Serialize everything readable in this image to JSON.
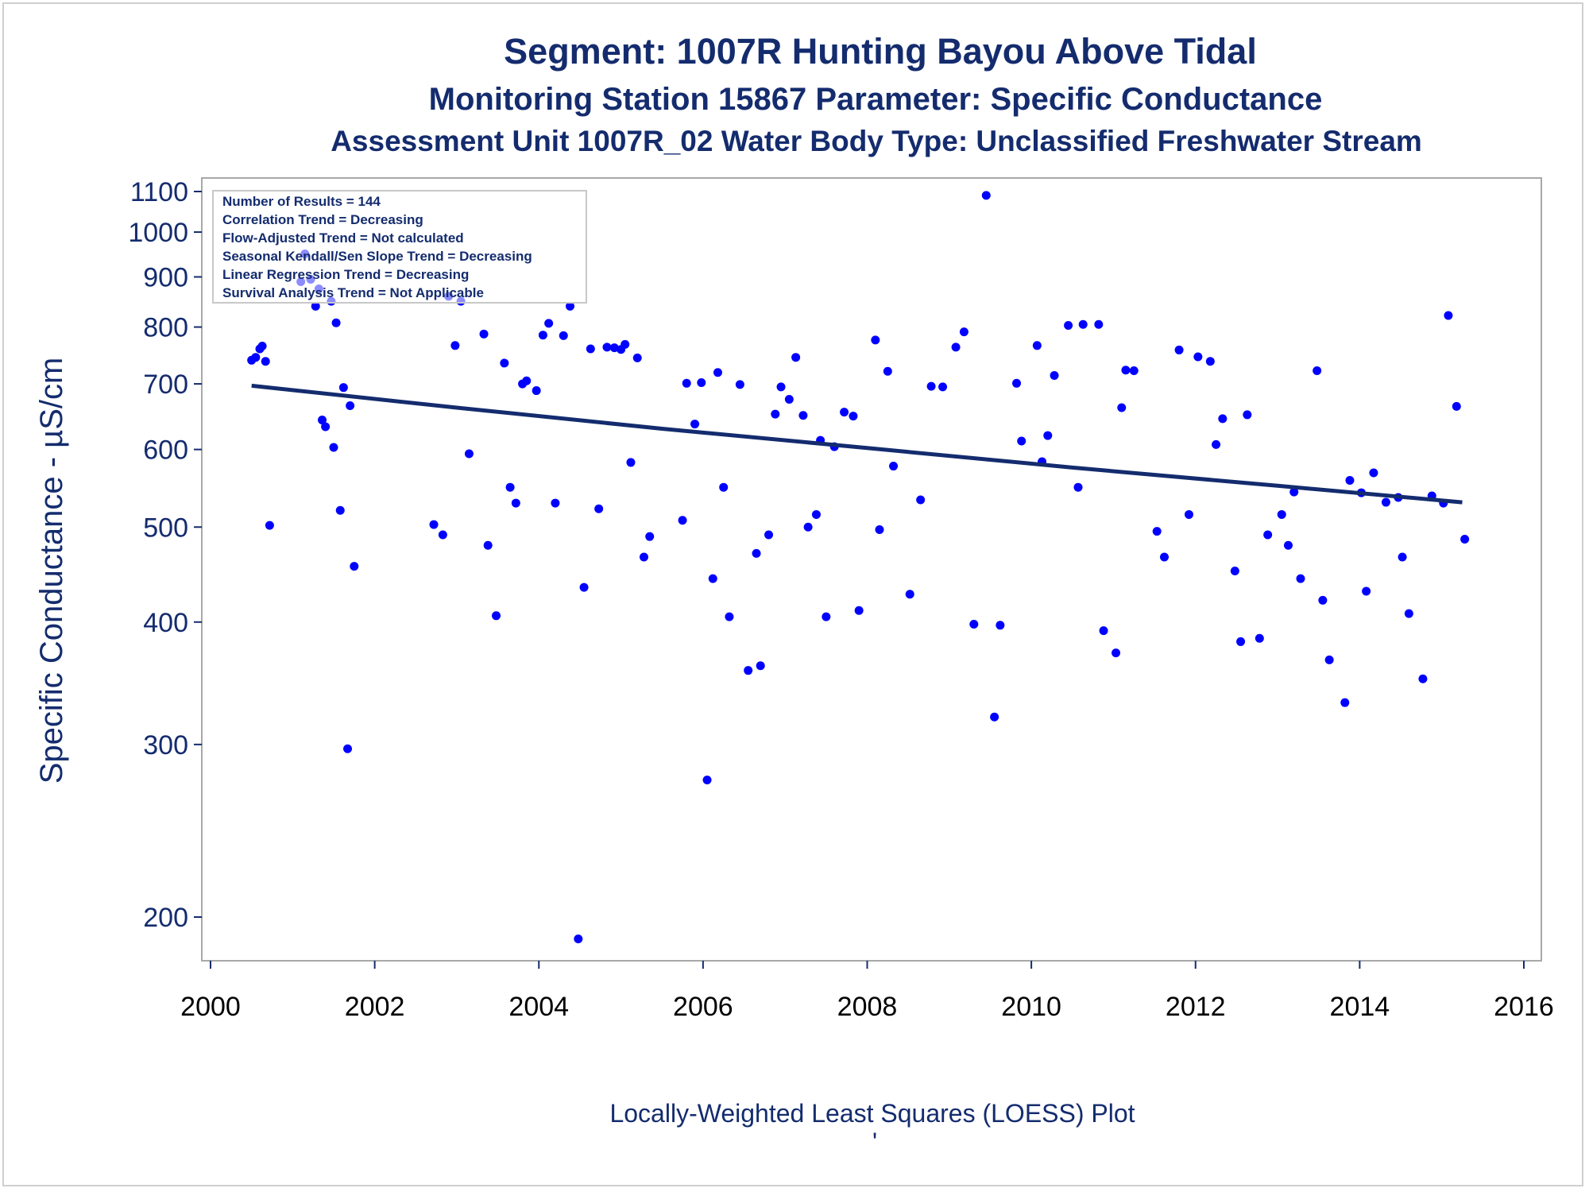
{
  "chart_data": {
    "type": "scatter",
    "title": "Segment: 1007R  Hunting Bayou Above Tidal",
    "subtitle": "Monitoring Station 15867 Parameter: Specific Conductance",
    "subtitle2": "Assessment Unit 1007R_02   Water Body Type: Unclassified Freshwater Stream",
    "ylabel": "Specific Conductance -  µS/cm",
    "footnote": "Locally-Weighted Least Squares (LOESS) Plot",
    "footnote_mark": "'",
    "xlim": [
      2000,
      2016
    ],
    "ylim": [
      180,
      1130
    ],
    "yscale": "log",
    "xticks": [
      2000,
      2002,
      2004,
      2006,
      2008,
      2010,
      2012,
      2014,
      2016
    ],
    "yticks": [
      200,
      300,
      400,
      500,
      600,
      700,
      800,
      900,
      1000,
      1100
    ],
    "grid": false,
    "legend_position": "top-left",
    "stats": [
      "Number of Results = 144",
      "Correlation Trend = Decreasing",
      "Flow-Adjusted Trend = Not calculated",
      "Seasonal Kendall/Sen Slope Trend = Decreasing",
      "Linear Regression Trend = Decreasing",
      "Survival Analysis Trend = Not Applicable"
    ],
    "point_color": "#0000ff",
    "trend_color": "#142c6e",
    "series": [
      {
        "points": [
          [
            2000.5,
            740
          ],
          [
            2000.55,
            745
          ],
          [
            2000.6,
            760
          ],
          [
            2000.63,
            765
          ],
          [
            2000.67,
            738
          ],
          [
            2000.72,
            502
          ],
          [
            2001.1,
            890
          ],
          [
            2001.15,
            950
          ],
          [
            2001.22,
            895
          ],
          [
            2001.28,
            840
          ],
          [
            2001.32,
            875
          ],
          [
            2001.36,
            643
          ],
          [
            2001.4,
            633
          ],
          [
            2001.47,
            850
          ],
          [
            2001.5,
            603
          ],
          [
            2001.53,
            808
          ],
          [
            2001.58,
            520
          ],
          [
            2001.62,
            694
          ],
          [
            2001.67,
            297
          ],
          [
            2001.7,
            665
          ],
          [
            2001.75,
            456
          ],
          [
            2002.72,
            503
          ],
          [
            2002.83,
            491
          ],
          [
            2002.9,
            860
          ],
          [
            2002.98,
            766
          ],
          [
            2003.05,
            850
          ],
          [
            2003.15,
            594
          ],
          [
            2003.33,
            787
          ],
          [
            2003.38,
            479
          ],
          [
            2003.48,
            406
          ],
          [
            2003.58,
            735
          ],
          [
            2003.65,
            549
          ],
          [
            2003.72,
            529
          ],
          [
            2003.8,
            700
          ],
          [
            2003.85,
            705
          ],
          [
            2003.97,
            689
          ],
          [
            2004.05,
            785
          ],
          [
            2004.12,
            807
          ],
          [
            2004.2,
            529
          ],
          [
            2004.3,
            784
          ],
          [
            2004.38,
            840
          ],
          [
            2004.48,
            190
          ],
          [
            2004.55,
            434
          ],
          [
            2004.63,
            760
          ],
          [
            2004.73,
            522
          ],
          [
            2004.83,
            763
          ],
          [
            2004.92,
            762
          ],
          [
            2005.0,
            759
          ],
          [
            2005.05,
            768
          ],
          [
            2005.12,
            582
          ],
          [
            2005.2,
            744
          ],
          [
            2005.28,
            466
          ],
          [
            2005.35,
            489
          ],
          [
            2005.75,
            508
          ],
          [
            2005.8,
            701
          ],
          [
            2005.9,
            637
          ],
          [
            2005.98,
            702
          ],
          [
            2006.05,
            276
          ],
          [
            2006.12,
            443
          ],
          [
            2006.18,
            719
          ],
          [
            2006.25,
            549
          ],
          [
            2006.32,
            405
          ],
          [
            2006.45,
            699
          ],
          [
            2006.55,
            357
          ],
          [
            2006.65,
            470
          ],
          [
            2006.7,
            361
          ],
          [
            2006.8,
            491
          ],
          [
            2006.88,
            652
          ],
          [
            2006.95,
            695
          ],
          [
            2007.05,
            675
          ],
          [
            2007.13,
            745
          ],
          [
            2007.22,
            650
          ],
          [
            2007.28,
            500
          ],
          [
            2007.38,
            515
          ],
          [
            2007.43,
            613
          ],
          [
            2007.5,
            405
          ],
          [
            2007.6,
            604
          ],
          [
            2007.72,
            655
          ],
          [
            2007.83,
            649
          ],
          [
            2007.9,
            411
          ],
          [
            2008.1,
            776
          ],
          [
            2008.15,
            497
          ],
          [
            2008.25,
            721
          ],
          [
            2008.32,
            577
          ],
          [
            2008.52,
            427
          ],
          [
            2008.65,
            533
          ],
          [
            2008.78,
            696
          ],
          [
            2008.92,
            695
          ],
          [
            2009.08,
            763
          ],
          [
            2009.18,
            791
          ],
          [
            2009.3,
            398
          ],
          [
            2009.45,
            1090
          ],
          [
            2009.55,
            320
          ],
          [
            2009.62,
            397
          ],
          [
            2009.82,
            701
          ],
          [
            2009.88,
            612
          ],
          [
            2010.07,
            766
          ],
          [
            2010.13,
            583
          ],
          [
            2010.2,
            620
          ],
          [
            2010.28,
            714
          ],
          [
            2010.45,
            803
          ],
          [
            2010.57,
            549
          ],
          [
            2010.63,
            805
          ],
          [
            2010.82,
            805
          ],
          [
            2010.88,
            392
          ],
          [
            2011.03,
            372
          ],
          [
            2011.1,
            662
          ],
          [
            2011.15,
            723
          ],
          [
            2011.25,
            722
          ],
          [
            2011.53,
            495
          ],
          [
            2011.62,
            466
          ],
          [
            2011.8,
            758
          ],
          [
            2011.92,
            515
          ],
          [
            2012.03,
            746
          ],
          [
            2012.18,
            738
          ],
          [
            2012.25,
            607
          ],
          [
            2012.33,
            645
          ],
          [
            2012.48,
            451
          ],
          [
            2012.55,
            382
          ],
          [
            2012.63,
            651
          ],
          [
            2012.78,
            385
          ],
          [
            2012.88,
            491
          ],
          [
            2013.05,
            515
          ],
          [
            2013.13,
            479
          ],
          [
            2013.2,
            543
          ],
          [
            2013.28,
            443
          ],
          [
            2013.48,
            722
          ],
          [
            2013.55,
            421
          ],
          [
            2013.63,
            366
          ],
          [
            2013.82,
            331
          ],
          [
            2013.88,
            558
          ],
          [
            2014.02,
            542
          ],
          [
            2014.08,
            430
          ],
          [
            2014.17,
            568
          ],
          [
            2014.32,
            530
          ],
          [
            2014.47,
            536
          ],
          [
            2014.52,
            466
          ],
          [
            2014.6,
            408
          ],
          [
            2014.77,
            350
          ],
          [
            2014.88,
            538
          ],
          [
            2015.02,
            529
          ],
          [
            2015.08,
            822
          ],
          [
            2015.18,
            664
          ],
          [
            2015.28,
            486
          ]
        ]
      }
    ],
    "trend": {
      "points": [
        [
          2000.5,
          697
        ],
        [
          2003.0,
          662
        ],
        [
          2005.5,
          630
        ],
        [
          2008.0,
          602
        ],
        [
          2010.5,
          575
        ],
        [
          2013.0,
          551
        ],
        [
          2015.25,
          530
        ]
      ]
    }
  }
}
